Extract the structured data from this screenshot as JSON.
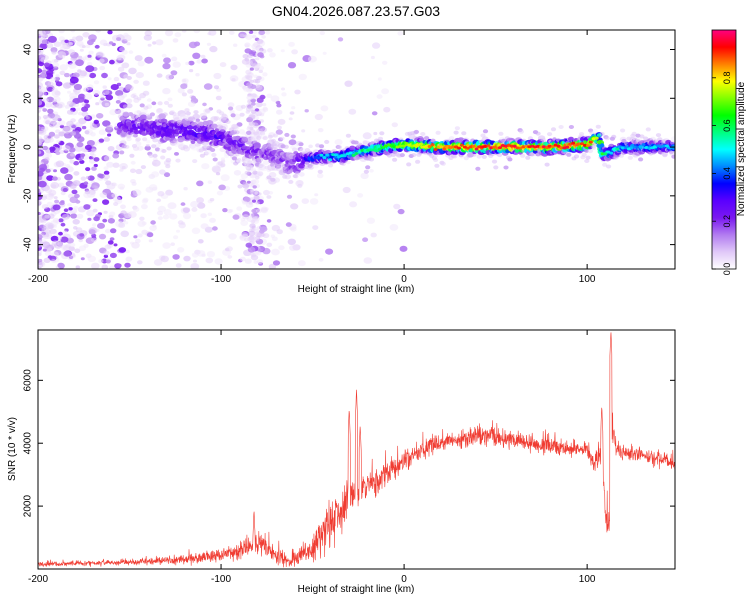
{
  "title": "GN04.2026.087.23.57.G03",
  "chart_data": [
    {
      "type": "heatmap",
      "xlabel": "Height of straight line (km)",
      "ylabel": "Frequency (Hz)",
      "xlim": [
        -200,
        148
      ],
      "ylim": [
        -50,
        48
      ],
      "xticks": [
        -200,
        -100,
        0,
        100
      ],
      "yticks": [
        -40,
        -20,
        0,
        20,
        40
      ],
      "grid": false,
      "colorbar": {
        "label": "Normalized spectral amplitude",
        "range": [
          0,
          1
        ],
        "ticks": [
          "0.0",
          "0.2",
          "0.4",
          "0.6",
          "0.8"
        ],
        "colors": [
          "#ffffff",
          "#e0c8f8",
          "#b27cf0",
          "#7a18f0",
          "#5a00ff",
          "#0000ff",
          "#0088ff",
          "#00ffff",
          "#00ff80",
          "#00ff00",
          "#80ff00",
          "#ffff00",
          "#ff8000",
          "#ff0000",
          "#ff0080"
        ]
      },
      "ridge": {
        "x": [
          -150,
          -130,
          -110,
          -100,
          -90,
          -80,
          -70,
          -62,
          -55,
          -45,
          -35,
          -25,
          -10,
          0,
          20,
          40,
          60,
          80,
          100,
          106,
          108,
          110,
          120,
          148
        ],
        "y": [
          9,
          7,
          6,
          4,
          1,
          -2,
          -4,
          -7,
          -5,
          -4,
          -4,
          -2,
          0,
          1,
          0,
          0,
          0,
          0,
          1,
          4,
          -2,
          -3,
          0,
          0
        ],
        "amplitude": [
          0.22,
          0.25,
          0.28,
          0.25,
          0.22,
          0.2,
          0.18,
          0.16,
          0.3,
          0.4,
          0.45,
          0.5,
          0.6,
          0.68,
          0.8,
          0.85,
          0.85,
          0.85,
          0.86,
          0.7,
          0.6,
          0.5,
          0.42,
          0.4
        ]
      }
    },
    {
      "type": "line",
      "xlabel": "Height of straight line (km)",
      "ylabel": "SNR (10 * v/v)",
      "xlim": [
        -200,
        148
      ],
      "ylim": [
        0,
        7600
      ],
      "xticks": [
        -200,
        -100,
        0,
        100
      ],
      "yticks": [
        2000,
        4000,
        6000
      ],
      "grid": false,
      "color": "#f03c32",
      "envelope": {
        "x": [
          -200,
          -150,
          -120,
          -100,
          -90,
          -80,
          -70,
          -62,
          -50,
          -42,
          -35,
          -30,
          -20,
          -10,
          0,
          10,
          20,
          30,
          40,
          60,
          80,
          100,
          104,
          108,
          110,
          112,
          114,
          116,
          120,
          130,
          148
        ],
        "y": [
          150,
          220,
          300,
          450,
          600,
          800,
          450,
          250,
          600,
          1400,
          1800,
          2100,
          2600,
          3000,
          3400,
          3800,
          4050,
          4100,
          4200,
          4100,
          3900,
          3800,
          3300,
          3900,
          1800,
          1400,
          4300,
          3800,
          3700,
          3600,
          3350
        ],
        "noise": [
          60,
          80,
          120,
          180,
          220,
          320,
          250,
          180,
          400,
          700,
          700,
          600,
          450,
          350,
          300,
          260,
          220,
          240,
          280,
          260,
          220,
          200,
          300,
          400,
          500,
          350,
          500,
          300,
          200,
          200,
          180
        ]
      },
      "peaks": [
        {
          "x": -82,
          "y": 1900
        },
        {
          "x": -30,
          "y": 5100
        },
        {
          "x": -26,
          "y": 5700
        },
        {
          "x": -24,
          "y": 4600
        },
        {
          "x": 108,
          "y": 5200
        },
        {
          "x": 113,
          "y": 7600
        }
      ]
    }
  ]
}
